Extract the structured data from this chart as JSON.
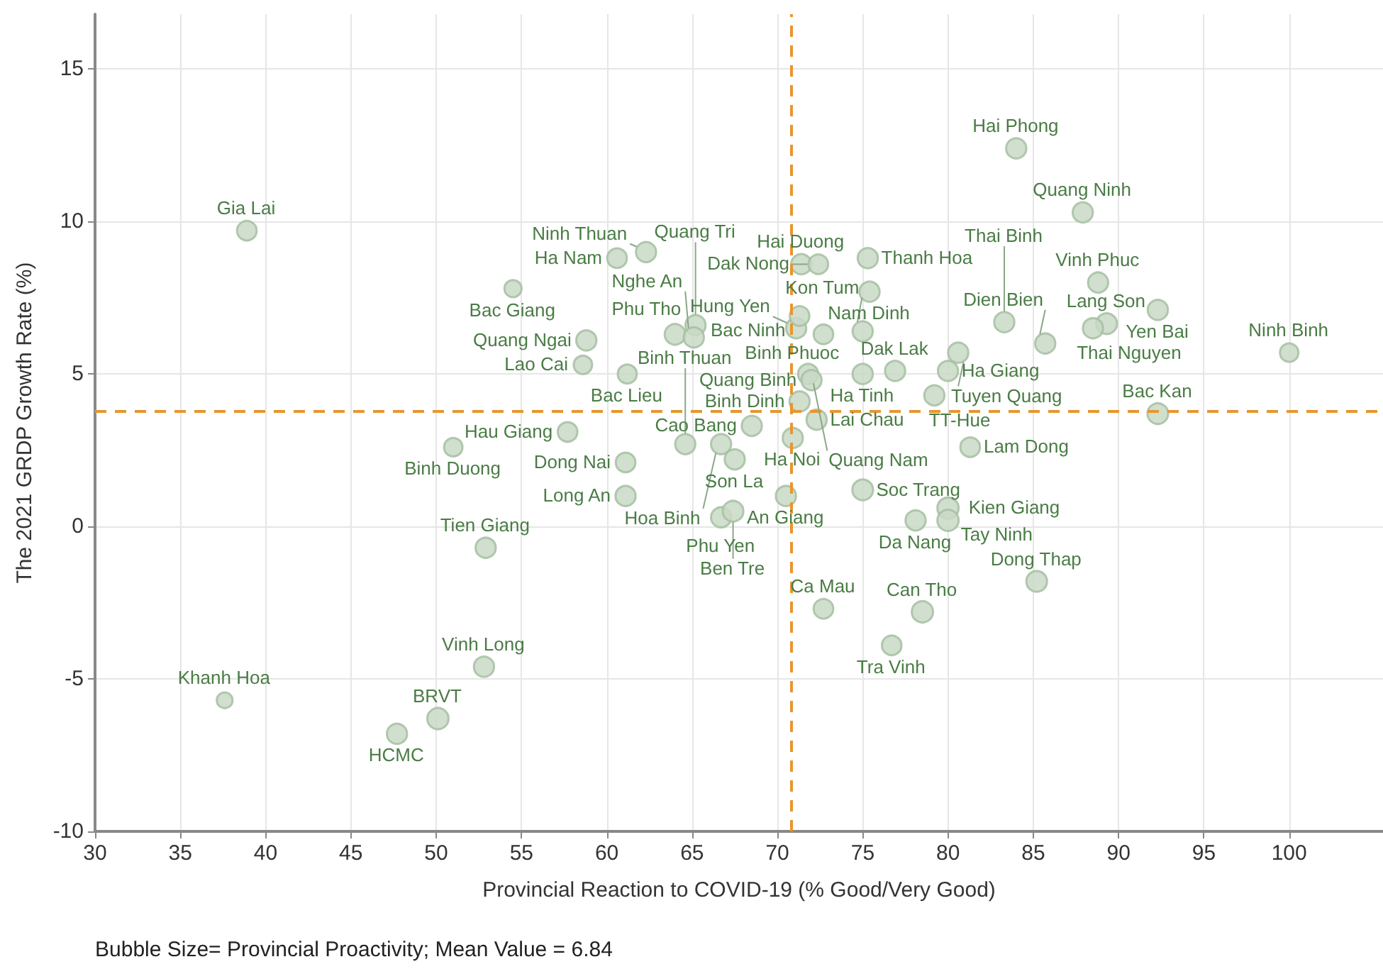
{
  "chart_data": {
    "type": "bubble",
    "xlabel": "Provincial Reaction to COVID-19 (% Good/Very Good)",
    "ylabel": "The 2021 GRDP Growth Rate (%)",
    "xlim": [
      30,
      105.5
    ],
    "ylim": [
      -10,
      16.8
    ],
    "xticks": [
      30,
      35,
      40,
      45,
      50,
      55,
      60,
      65,
      70,
      75,
      80,
      85,
      90,
      95,
      100
    ],
    "yticks": [
      -10,
      -5,
      0,
      5,
      10,
      15
    ],
    "grid": true,
    "marker": "circle",
    "ref_lines": [
      {
        "axis": "x",
        "value": 70.8,
        "color": "#e8962e",
        "line_style": "dashed"
      },
      {
        "axis": "y",
        "value": 3.8,
        "color": "#e8962e",
        "line_style": "dashed"
      }
    ],
    "series": [
      {
        "color": "#c9d9c5",
        "x": [
          38.9,
          54.5,
          51.0,
          60.6,
          62.3,
          71.4,
          72.4,
          75.3,
          75.4,
          71.1,
          71.3,
          72.7,
          75.0,
          64.0,
          65.2,
          65.1,
          58.8,
          58.6,
          61.2,
          71.8,
          75.0,
          72.0,
          71.3,
          76.9,
          80.0,
          80.6,
          79.2,
          84.0,
          87.9,
          88.8,
          92.3,
          83.3,
          89.3,
          88.5,
          85.7,
          100.0,
          92.3,
          81.3,
          57.7,
          68.5,
          72.3,
          64.6,
          66.7,
          70.9,
          61.1,
          67.5,
          61.1,
          70.5,
          75.0,
          80.0,
          78.1,
          80.0,
          66.7,
          67.4,
          52.9,
          72.7,
          78.5,
          76.7,
          85.2,
          52.8,
          37.6,
          50.1,
          47.7
        ],
        "values": [
          9.7,
          7.8,
          2.6,
          8.8,
          9.0,
          8.6,
          8.6,
          8.8,
          7.7,
          6.5,
          6.9,
          6.3,
          6.4,
          6.3,
          6.6,
          6.2,
          6.1,
          5.3,
          5.0,
          5.0,
          5.0,
          4.8,
          4.1,
          5.1,
          5.1,
          5.7,
          4.3,
          12.4,
          10.3,
          8.0,
          7.1,
          6.7,
          6.65,
          6.5,
          6.0,
          5.7,
          3.7,
          2.6,
          3.1,
          3.3,
          3.5,
          2.7,
          2.7,
          2.9,
          2.1,
          2.2,
          1.0,
          1.0,
          1.2,
          0.6,
          0.2,
          0.2,
          0.3,
          0.5,
          -0.7,
          -2.7,
          -2.8,
          -3.9,
          -1.8,
          -4.6,
          -5.7,
          -6.3,
          -6.8
        ],
        "sizes": [
          0.85,
          0.65,
          0.75,
          0.85,
          0.9,
          0.9,
          0.85,
          0.9,
          0.9,
          0.9,
          0.85,
          0.85,
          0.9,
          0.95,
          0.9,
          0.9,
          0.9,
          0.75,
          0.8,
          0.9,
          0.9,
          0.9,
          0.9,
          0.9,
          0.9,
          0.9,
          0.9,
          0.9,
          0.9,
          0.9,
          0.9,
          0.9,
          0.95,
          0.9,
          0.9,
          0.75,
          0.95,
          0.85,
          0.85,
          0.9,
          0.9,
          0.9,
          0.9,
          0.9,
          0.85,
          0.9,
          0.9,
          0.9,
          0.95,
          1,
          0.9,
          1,
          0.9,
          0.95,
          0.9,
          0.85,
          1,
          0.85,
          0.95,
          0.9,
          0.55,
          1,
          0.9
        ]
      }
    ],
    "annotations": [
      {
        "text": "Gia Lai",
        "x": 38.9,
        "y": 9.7
      },
      {
        "text": "Bac Giang",
        "x": 54.5,
        "y": 7.8
      },
      {
        "text": "Binh Duong",
        "x": 51.0,
        "y": 2.6
      },
      {
        "text": "Ha Nam",
        "x": 60.6,
        "y": 8.8
      },
      {
        "text": "Ninh Thuan",
        "x": 62.3,
        "y": 9.0
      },
      {
        "text": "Hai Duong",
        "x": 71.4,
        "y": 8.6
      },
      {
        "text": "Dak Nong",
        "x": 72.4,
        "y": 8.6
      },
      {
        "text": "Thanh Hoa",
        "x": 75.3,
        "y": 8.8
      },
      {
        "text": "Nam Dinh",
        "x": 75.4,
        "y": 7.7
      },
      {
        "text": "Hung Yen",
        "x": 71.1,
        "y": 6.5
      },
      {
        "text": "Bac Ninh",
        "x": 71.3,
        "y": 6.9
      },
      {
        "text": "Binh Phuoc",
        "x": 72.7,
        "y": 6.3
      },
      {
        "text": "Kon Tum",
        "x": 75.0,
        "y": 6.4
      },
      {
        "text": "Phu Tho",
        "x": 64.0,
        "y": 6.3
      },
      {
        "text": "Quang Tri",
        "x": 65.2,
        "y": 6.6
      },
      {
        "text": "Nghe An",
        "x": 65.1,
        "y": 6.2
      },
      {
        "text": "Quang Ngai",
        "x": 58.8,
        "y": 6.1
      },
      {
        "text": "Lao Cai",
        "x": 58.6,
        "y": 5.3
      },
      {
        "text": "Bac Lieu",
        "x": 61.2,
        "y": 5.0
      },
      {
        "text": "Quang Nam",
        "x": 71.8,
        "y": 5.0
      },
      {
        "text": "Ha Tinh",
        "x": 75.0,
        "y": 5.0
      },
      {
        "text": "Quang Binh",
        "x": 72.0,
        "y": 4.8
      },
      {
        "text": "Binh Dinh",
        "x": 71.3,
        "y": 4.1
      },
      {
        "text": "Dak Lak",
        "x": 76.9,
        "y": 5.1
      },
      {
        "text": "Ha Giang",
        "x": 80.0,
        "y": 5.1
      },
      {
        "text": "Tuyen Quang",
        "x": 80.6,
        "y": 5.7
      },
      {
        "text": "TT-Hue",
        "x": 79.2,
        "y": 4.3
      },
      {
        "text": "Hai Phong",
        "x": 84.0,
        "y": 12.4
      },
      {
        "text": "Quang Ninh",
        "x": 87.9,
        "y": 10.3
      },
      {
        "text": "Vinh Phuc",
        "x": 88.8,
        "y": 8.0
      },
      {
        "text": "Yen Bai",
        "x": 92.3,
        "y": 7.1
      },
      {
        "text": "Thai Binh",
        "x": 83.3,
        "y": 6.7
      },
      {
        "text": "Lang Son",
        "x": 89.3,
        "y": 6.65
      },
      {
        "text": "Thai Nguyen",
        "x": 88.5,
        "y": 6.5
      },
      {
        "text": "Dien Bien",
        "x": 85.7,
        "y": 6.0
      },
      {
        "text": "Ninh Binh",
        "x": 100.0,
        "y": 5.7
      },
      {
        "text": "Bac Kan",
        "x": 92.3,
        "y": 3.7
      },
      {
        "text": "Lam Dong",
        "x": 81.3,
        "y": 2.6
      },
      {
        "text": "Hau Giang",
        "x": 57.7,
        "y": 3.1
      },
      {
        "text": "Cao Bang",
        "x": 68.5,
        "y": 3.3
      },
      {
        "text": "Lai Chau",
        "x": 72.3,
        "y": 3.5
      },
      {
        "text": "Binh Thuan",
        "x": 64.6,
        "y": 2.7
      },
      {
        "text": "Hoa Binh",
        "x": 66.7,
        "y": 2.7
      },
      {
        "text": "Ha Noi",
        "x": 70.9,
        "y": 2.9
      },
      {
        "text": "Dong Nai",
        "x": 61.1,
        "y": 2.1
      },
      {
        "text": "Son La",
        "x": 67.5,
        "y": 2.2
      },
      {
        "text": "Long An",
        "x": 61.1,
        "y": 1.0
      },
      {
        "text": "An Giang",
        "x": 70.5,
        "y": 1.0
      },
      {
        "text": "Soc Trang",
        "x": 75.0,
        "y": 1.2
      },
      {
        "text": "Kien Giang",
        "x": 80.0,
        "y": 0.6
      },
      {
        "text": "Da Nang",
        "x": 78.1,
        "y": 0.2
      },
      {
        "text": "Tay Ninh",
        "x": 80.0,
        "y": 0.2
      },
      {
        "text": "Phu Yen",
        "x": 66.7,
        "y": 0.3
      },
      {
        "text": "Ben Tre",
        "x": 67.4,
        "y": 0.5
      },
      {
        "text": "Tien Giang",
        "x": 52.9,
        "y": -0.7
      },
      {
        "text": "Ca Mau",
        "x": 72.7,
        "y": -2.7
      },
      {
        "text": "Can Tho",
        "x": 78.5,
        "y": -2.8
      },
      {
        "text": "Tra Vinh",
        "x": 76.7,
        "y": -3.9
      },
      {
        "text": "Dong Thap",
        "x": 85.2,
        "y": -1.8
      },
      {
        "text": "Vinh Long",
        "x": 52.8,
        "y": -4.6
      },
      {
        "text": "Khanh Hoa",
        "x": 37.6,
        "y": -5.7
      },
      {
        "text": "BRVT",
        "x": 50.1,
        "y": -6.3
      },
      {
        "text": "HCMC",
        "x": 47.7,
        "y": -6.8
      },
      "Bubble Size= Provincial Proactivity; Mean Value = 6.84"
    ]
  }
}
